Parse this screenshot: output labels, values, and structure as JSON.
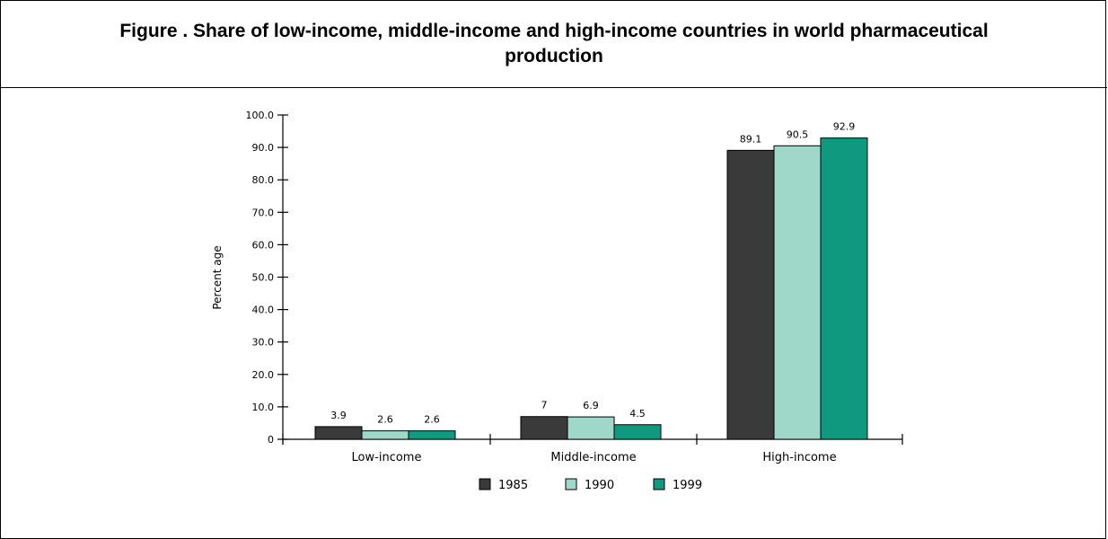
{
  "figure": {
    "title": "Figure . Share of low-income, middle-income and high-income countries in world pharmaceutical production"
  },
  "chart_data": {
    "type": "bar",
    "title": "Figure . Share of low-income, middle-income and high-income countries in world pharmaceutical production",
    "xlabel": "",
    "ylabel": "Percent age",
    "ylim": [
      0,
      100
    ],
    "yticks": [
      "0",
      "10.0",
      "20.0",
      "30.0",
      "40.0",
      "50.0",
      "60.0",
      "70.0",
      "80.0",
      "90.0",
      "100.0"
    ],
    "categories": [
      "Low-income",
      "Middle-income",
      "High-income"
    ],
    "series": [
      {
        "name": "1985",
        "color": "#3a3a3a",
        "values": [
          3.9,
          7,
          89.1
        ],
        "labels": [
          "3.9",
          "7",
          "89.1"
        ]
      },
      {
        "name": "1990",
        "color": "#9fd8c8",
        "values": [
          2.6,
          6.9,
          90.5
        ],
        "labels": [
          "2.6",
          "6.9",
          "90.5"
        ]
      },
      {
        "name": "1999",
        "color": "#0f9a80",
        "values": [
          2.6,
          4.5,
          92.9
        ],
        "labels": [
          "2.6",
          "4.5",
          "92.9"
        ]
      }
    ],
    "legend_position": "bottom",
    "grid": false
  }
}
